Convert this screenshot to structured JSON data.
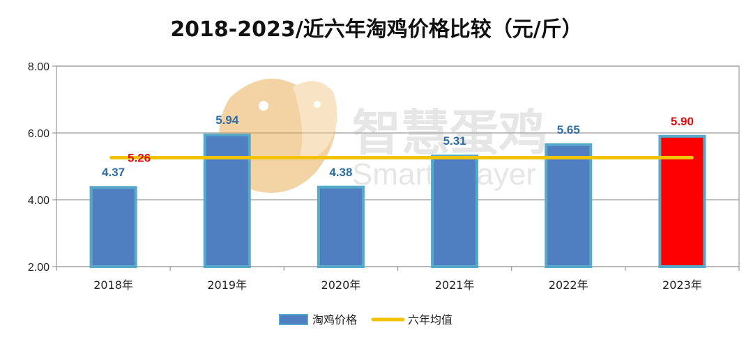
{
  "chart_data": {
    "type": "bar",
    "title": "2018-2023/近六年淘鸡价格比较（元/斤）",
    "categories": [
      "2018年",
      "2019年",
      "2020年",
      "2021年",
      "2022年",
      "2023年"
    ],
    "series": [
      {
        "name": "淘鸡价格",
        "values": [
          4.37,
          5.94,
          4.38,
          5.31,
          5.65,
          5.9
        ]
      },
      {
        "name": "六年均值",
        "type": "line",
        "value": 5.26
      }
    ],
    "value_labels": [
      "4.37",
      "5.94",
      "4.38",
      "5.31",
      "5.65",
      "5.90"
    ],
    "average_label": "5.26",
    "ylim": [
      2.0,
      8.0
    ],
    "yticks": [
      "2.00",
      "4.00",
      "6.00",
      "8.00"
    ],
    "highlight_index": 5,
    "grid": true,
    "legend_position": "bottom-center",
    "colors": {
      "bar_fill": "#4f7fc0",
      "bar_edge": "#57a9c9",
      "highlight_fill": "#ff0000",
      "average_line": "#f2c300",
      "bar_label": "#2e6da4",
      "red_label": "#e01010",
      "grid": "#9a9a9a"
    }
  },
  "legend": {
    "bar_label": "淘鸡价格",
    "line_label": "六年均值"
  },
  "watermark": {
    "cn": "智慧蛋鸡",
    "en": "Smarter layer"
  }
}
